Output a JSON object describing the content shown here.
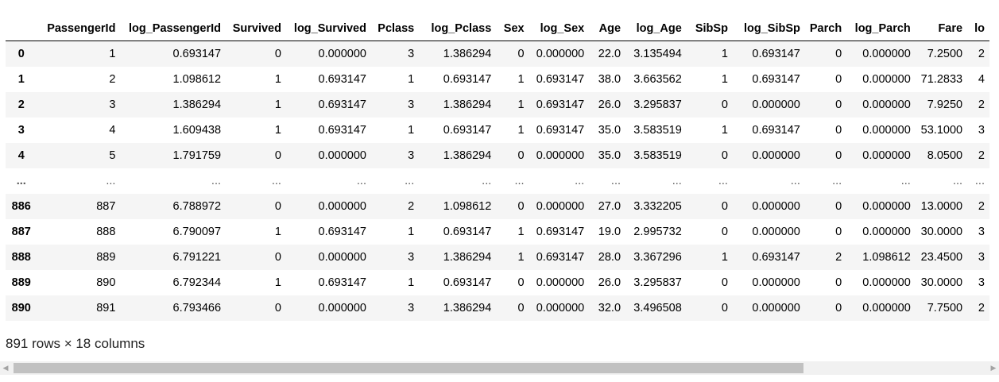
{
  "table": {
    "columns": [
      "",
      "PassengerId",
      "log_PassengerId",
      "Survived",
      "log_Survived",
      "Pclass",
      "log_Pclass",
      "Sex",
      "log_Sex",
      "Age",
      "log_Age",
      "SibSp",
      "log_SibSp",
      "Parch",
      "log_Parch",
      "Fare",
      "lo"
    ],
    "rows": [
      [
        "0",
        "1",
        "0.693147",
        "0",
        "0.000000",
        "3",
        "1.386294",
        "0",
        "0.000000",
        "22.0",
        "3.135494",
        "1",
        "0.693147",
        "0",
        "0.000000",
        "7.2500",
        "2"
      ],
      [
        "1",
        "2",
        "1.098612",
        "1",
        "0.693147",
        "1",
        "0.693147",
        "1",
        "0.693147",
        "38.0",
        "3.663562",
        "1",
        "0.693147",
        "0",
        "0.000000",
        "71.2833",
        "4"
      ],
      [
        "2",
        "3",
        "1.386294",
        "1",
        "0.693147",
        "3",
        "1.386294",
        "1",
        "0.693147",
        "26.0",
        "3.295837",
        "0",
        "0.000000",
        "0",
        "0.000000",
        "7.9250",
        "2"
      ],
      [
        "3",
        "4",
        "1.609438",
        "1",
        "0.693147",
        "1",
        "0.693147",
        "1",
        "0.693147",
        "35.0",
        "3.583519",
        "1",
        "0.693147",
        "0",
        "0.000000",
        "53.1000",
        "3"
      ],
      [
        "4",
        "5",
        "1.791759",
        "0",
        "0.000000",
        "3",
        "1.386294",
        "0",
        "0.000000",
        "35.0",
        "3.583519",
        "0",
        "0.000000",
        "0",
        "0.000000",
        "8.0500",
        "2"
      ],
      [
        "...",
        "...",
        "...",
        "...",
        "...",
        "...",
        "...",
        "...",
        "...",
        "...",
        "...",
        "...",
        "...",
        "...",
        "...",
        "...",
        "..."
      ],
      [
        "886",
        "887",
        "6.788972",
        "0",
        "0.000000",
        "2",
        "1.098612",
        "0",
        "0.000000",
        "27.0",
        "3.332205",
        "0",
        "0.000000",
        "0",
        "0.000000",
        "13.0000",
        "2"
      ],
      [
        "887",
        "888",
        "6.790097",
        "1",
        "0.693147",
        "1",
        "0.693147",
        "1",
        "0.693147",
        "19.0",
        "2.995732",
        "0",
        "0.000000",
        "0",
        "0.000000",
        "30.0000",
        "3"
      ],
      [
        "888",
        "889",
        "6.791221",
        "0",
        "0.000000",
        "3",
        "1.386294",
        "1",
        "0.693147",
        "28.0",
        "3.367296",
        "1",
        "0.693147",
        "2",
        "1.098612",
        "23.4500",
        "3"
      ],
      [
        "889",
        "890",
        "6.792344",
        "1",
        "0.693147",
        "1",
        "0.693147",
        "0",
        "0.000000",
        "26.0",
        "3.295837",
        "0",
        "0.000000",
        "0",
        "0.000000",
        "30.0000",
        "3"
      ],
      [
        "890",
        "891",
        "6.793466",
        "0",
        "0.000000",
        "3",
        "1.386294",
        "0",
        "0.000000",
        "32.0",
        "3.496508",
        "0",
        "0.000000",
        "0",
        "0.000000",
        "7.7500",
        "2"
      ]
    ]
  },
  "summary": "891 rows × 18 columns",
  "scrollbar": {
    "left_arrow_icon": "triangle-left-icon",
    "right_arrow_icon": "triangle-right-icon",
    "visible_fraction": 0.8
  }
}
